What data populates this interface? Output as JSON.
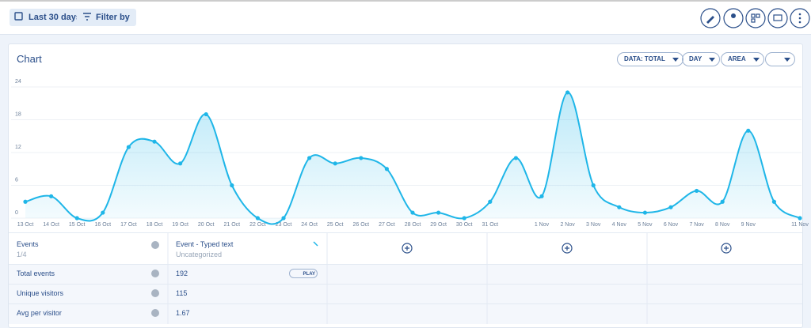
{
  "toolbar": {
    "date_range": "Last 30 days",
    "filter": "Filter by"
  },
  "chart_data": {
    "type": "area",
    "title": "Chart",
    "controls": [
      "DATA: TOTAL",
      "DAY",
      "AREA"
    ],
    "categories": [
      "13 Oct",
      "14 Oct",
      "15 Oct",
      "16 Oct",
      "17 Oct",
      "18 Oct",
      "19 Oct",
      "20 Oct",
      "21 Oct",
      "22 Oct",
      "23 Oct",
      "24 Oct",
      "25 Oct",
      "26 Oct",
      "27 Oct",
      "28 Oct",
      "29 Oct",
      "30 Oct",
      "31 Oct",
      null,
      "1 Nov",
      "2 Nov",
      "3 Nov",
      "4 Nov",
      "5 Nov",
      "6 Nov",
      "7 Nov",
      "8 Nov",
      "9 Nov",
      null,
      "11 Nov"
    ],
    "series": [
      {
        "name": "Event - Typed text",
        "color": "#1fb6e8",
        "values": [
          3,
          4,
          0,
          1,
          13,
          14,
          10,
          19,
          6,
          0,
          0,
          11,
          10,
          11,
          9,
          1,
          1,
          0,
          3,
          11,
          4,
          23,
          6,
          2,
          1,
          2,
          5,
          3,
          16,
          3,
          0
        ]
      }
    ],
    "ylim": [
      0,
      24
    ],
    "yticks": [
      0,
      6,
      12,
      18,
      24
    ],
    "grid": true
  },
  "table": {
    "header": {
      "label": "Events",
      "count": "1/4",
      "event": "Event - Typed text",
      "category": "Uncategorized"
    },
    "play": "PLAY",
    "rows": [
      [
        "Total events",
        192
      ],
      [
        "Unique visitors",
        115
      ],
      [
        "Avg per visitor",
        1.67
      ]
    ]
  }
}
